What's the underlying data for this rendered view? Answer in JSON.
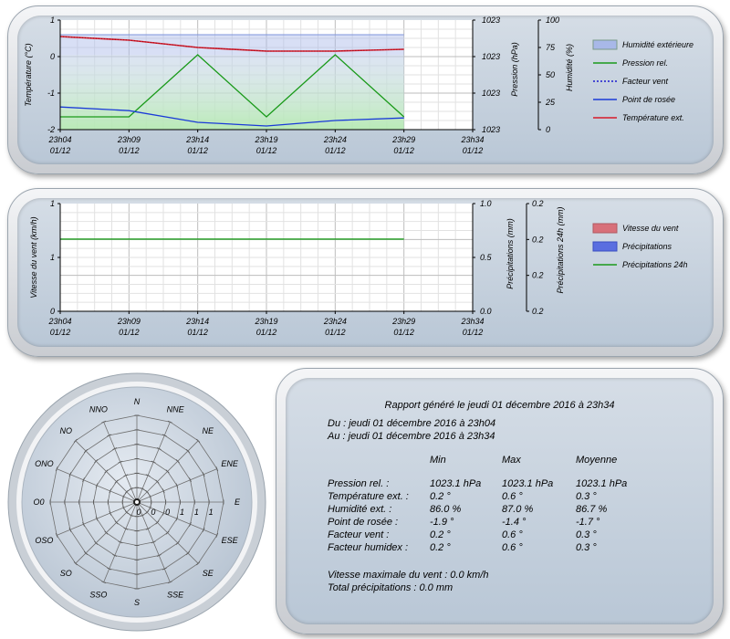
{
  "colors": {
    "humidity": "#a8b8e8",
    "pressure": "#1a9a1a",
    "wind_factor": "#1a1acd",
    "dew_point": "#1a3ad8",
    "temperature": "#d81a2a",
    "wind_speed": "#d8707a",
    "precip": "#5a6ee0",
    "precip24": "#1a9a1a"
  },
  "chart1": {
    "y_left_label": "Température (°C)",
    "y_right1_label": "Pression (hPa)",
    "y_right2_label": "Humidité (%)",
    "legend": [
      "Humidité extérieure",
      "Pression rel.",
      "Facteur vent",
      "Point de rosée",
      "Température ext."
    ]
  },
  "chart2": {
    "y_left_label": "Vitesse du vent (km/h)",
    "y_right1_label": "Précipitations (mm)",
    "y_right2_label": "Précipitations 24h (mm)",
    "legend": [
      "Vitesse du vent",
      "Précipitations",
      "Précipitations 24h"
    ]
  },
  "chart_data": [
    {
      "type": "line",
      "x": [
        "23h04 01/12",
        "23h09 01/12",
        "23h14 01/12",
        "23h19 01/12",
        "23h24 01/12",
        "23h29 01/12",
        "23h34 01/12"
      ],
      "x_ticks": [
        {
          "time": "23h04",
          "date": "01/12"
        },
        {
          "time": "23h09",
          "date": "01/12"
        },
        {
          "time": "23h14",
          "date": "01/12"
        },
        {
          "time": "23h19",
          "date": "01/12"
        },
        {
          "time": "23h24",
          "date": "01/12"
        },
        {
          "time": "23h29",
          "date": "01/12"
        },
        {
          "time": "23h34",
          "date": "01/12"
        }
      ],
      "ylim_left": [
        -2,
        1
      ],
      "y_left_ticks": [
        "1",
        "0",
        "-1",
        "-2"
      ],
      "y_right1_ticks": [
        "1023",
        "1023",
        "1023",
        "1023"
      ],
      "y_right2_ticks": [
        "100",
        "75",
        "50",
        "25",
        "0"
      ],
      "ylim_right2": [
        0,
        100
      ],
      "series": [
        {
          "name": "Humidité extérieure",
          "type": "area",
          "axis": "humidity",
          "x": [
            0,
            5
          ],
          "values": [
            86.7,
            86.7
          ]
        },
        {
          "name": "Pression rel.",
          "axis": "temp",
          "x": [
            0,
            1,
            2,
            3,
            4,
            5
          ],
          "values": [
            -1.65,
            -1.65,
            0.05,
            -1.65,
            0.05,
            -1.65
          ]
        },
        {
          "name": "Facteur vent",
          "axis": "temp",
          "x": [],
          "values": []
        },
        {
          "name": "Point de rosée",
          "axis": "temp",
          "x": [
            0,
            1,
            2,
            3,
            4,
            5
          ],
          "values": [
            -1.38,
            -1.48,
            -1.8,
            -1.9,
            -1.75,
            -1.68
          ]
        },
        {
          "name": "Température ext.",
          "axis": "temp",
          "x": [
            0,
            1,
            2,
            3,
            4,
            5
          ],
          "values": [
            0.55,
            0.45,
            0.25,
            0.15,
            0.15,
            0.2
          ]
        }
      ],
      "grid": true,
      "legend_position": "right"
    },
    {
      "type": "line",
      "x": [
        "23h04 01/12",
        "23h09 01/12",
        "23h14 01/12",
        "23h19 01/12",
        "23h24 01/12",
        "23h29 01/12",
        "23h34 01/12"
      ],
      "x_ticks": [
        {
          "time": "23h04",
          "date": "01/12"
        },
        {
          "time": "23h09",
          "date": "01/12"
        },
        {
          "time": "23h14",
          "date": "01/12"
        },
        {
          "time": "23h19",
          "date": "01/12"
        },
        {
          "time": "23h24",
          "date": "01/12"
        },
        {
          "time": "23h29",
          "date": "01/12"
        },
        {
          "time": "23h34",
          "date": "01/12"
        }
      ],
      "y_left_ticks": [
        "1",
        "1",
        "0"
      ],
      "y_right1_ticks": [
        "1.0",
        "0.5",
        "0.0"
      ],
      "y_right2_ticks": [
        "0.2",
        "0.2",
        "0.2",
        "0.2"
      ],
      "ylim_right1": [
        0,
        1
      ],
      "series": [
        {
          "name": "Vitesse du vent",
          "x": [],
          "values": []
        },
        {
          "name": "Précipitations",
          "x": [],
          "values": []
        },
        {
          "name": "Précipitations 24h",
          "axis": "precip",
          "x": [
            0,
            5
          ],
          "values": [
            0.67,
            0.67
          ]
        }
      ],
      "grid": true,
      "legend_position": "right"
    }
  ],
  "rose": {
    "directions": [
      "N",
      "NNE",
      "NE",
      "ENE",
      "E",
      "ESE",
      "SE",
      "SSE",
      "S",
      "SSO",
      "SO",
      "OSO",
      "O",
      "ONO",
      "NO",
      "NNO"
    ],
    "scale_labels": [
      "0",
      "0",
      "0",
      "1",
      "1",
      "1"
    ],
    "left_label": "0"
  },
  "report": {
    "title": "Rapport généré le jeudi 01 décembre 2016 à 23h34",
    "from": "Du : jeudi 01 décembre 2016 à 23h04",
    "to": "Au : jeudi 01 décembre 2016 à 23h34",
    "headers": [
      "Min",
      "Max",
      "Moyenne"
    ],
    "rows": [
      {
        "label": "Pression rel. :",
        "min": "1023.1 hPa",
        "max": "1023.1 hPa",
        "avg": "1023.1 hPa"
      },
      {
        "label": "Température ext. :",
        "min": "0.2 °",
        "max": "0.6 °",
        "avg": "0.3 °"
      },
      {
        "label": "Humidité ext. :",
        "min": "86.0 %",
        "max": "87.0 %",
        "avg": "86.7 %"
      },
      {
        "label": "Point de rosée :",
        "min": "-1.9 °",
        "max": "-1.4 °",
        "avg": "-1.7 °"
      },
      {
        "label": "Facteur vent :",
        "min": "0.2 °",
        "max": "0.6 °",
        "avg": "0.3 °"
      },
      {
        "label": "Facteur humidex :",
        "min": "0.2 °",
        "max": "0.6 °",
        "avg": "0.3 °"
      }
    ],
    "max_wind": "Vitesse maximale du vent : 0.0 km/h",
    "total_precip": "Total précipitations : 0.0 mm"
  }
}
